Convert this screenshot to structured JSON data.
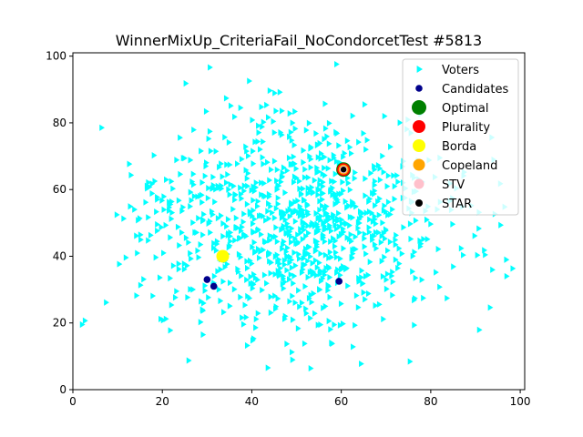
{
  "chart_data": {
    "type": "scatter",
    "title": "WinnerMixUp_CriteriaFail_NoCondorcetTest #5813",
    "xlabel": "",
    "ylabel": "",
    "xlim": [
      0,
      101
    ],
    "ylim": [
      0,
      101
    ],
    "xticks": [
      0,
      20,
      40,
      60,
      80,
      100
    ],
    "yticks": [
      0,
      20,
      40,
      60,
      80,
      100
    ],
    "grid": false,
    "legend_position": "top-right",
    "voters": {
      "name": "Voters",
      "color": "#00ffff",
      "marker": "triangle-right",
      "count": 1000,
      "center": [
        50,
        50
      ],
      "spread": 17,
      "seed": 5813
    },
    "series": [
      {
        "name": "Candidates",
        "color": "#00008b",
        "marker": "circle",
        "points": [
          [
            30,
            33
          ],
          [
            31.5,
            31
          ],
          [
            59.5,
            32.5
          ],
          [
            60.5,
            66
          ]
        ]
      },
      {
        "name": "Optimal",
        "color": "#008000",
        "marker": "circle",
        "points": [
          [
            60.5,
            66
          ]
        ]
      },
      {
        "name": "Plurality",
        "color": "#ff0000",
        "marker": "circle",
        "points": [
          [
            60.5,
            66
          ]
        ]
      },
      {
        "name": "Borda",
        "color": "#ffff00",
        "marker": "circle",
        "points": [
          [
            33.5,
            40
          ]
        ]
      },
      {
        "name": "Copeland",
        "color": "#ffa500",
        "marker": "circle",
        "points": [
          [
            60.5,
            66
          ]
        ]
      },
      {
        "name": "STV",
        "color": "#ffc0cb",
        "marker": "circle",
        "points": [
          [
            60.5,
            66
          ]
        ]
      },
      {
        "name": "STAR",
        "color": "#000000",
        "marker": "circle",
        "points": [
          [
            60.5,
            66
          ]
        ]
      }
    ]
  }
}
